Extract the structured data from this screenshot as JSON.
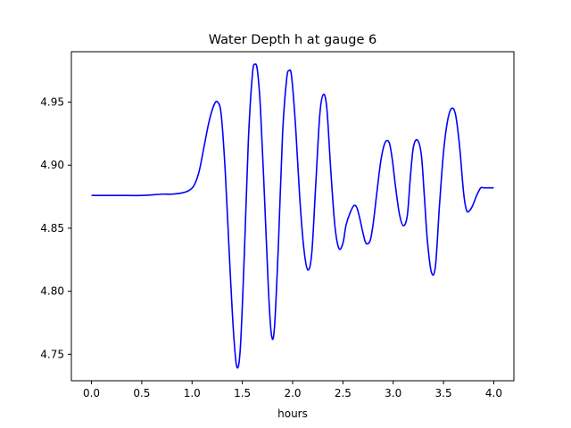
{
  "chart_data": {
    "type": "line",
    "title": "Water Depth h at gauge 6",
    "xlabel": "hours",
    "ylabel": "",
    "xlim": [
      -0.2,
      4.2
    ],
    "ylim": [
      4.729,
      4.99
    ],
    "xticks": [
      0.0,
      0.5,
      1.0,
      1.5,
      2.0,
      2.5,
      3.0,
      3.5,
      4.0
    ],
    "xtick_labels": [
      "0.0",
      "0.5",
      "1.0",
      "1.5",
      "2.0",
      "2.5",
      "3.0",
      "3.5",
      "4.0"
    ],
    "yticks": [
      4.75,
      4.8,
      4.85,
      4.9,
      4.95
    ],
    "ytick_labels": [
      "4.75",
      "4.80",
      "4.85",
      "4.90",
      "4.95"
    ],
    "grid": false,
    "series": [
      {
        "color": "#0000ff",
        "x": [
          0.0,
          0.25,
          0.5,
          0.7,
          0.8,
          0.9,
          0.97,
          1.02,
          1.07,
          1.12,
          1.17,
          1.22,
          1.255,
          1.29,
          1.33,
          1.37,
          1.41,
          1.445,
          1.48,
          1.52,
          1.56,
          1.6,
          1.625,
          1.65,
          1.68,
          1.72,
          1.76,
          1.79,
          1.82,
          1.86,
          1.9,
          1.94,
          1.965,
          1.99,
          2.03,
          2.07,
          2.11,
          2.15,
          2.19,
          2.23,
          2.27,
          2.305,
          2.34,
          2.38,
          2.42,
          2.46,
          2.5,
          2.53,
          2.57,
          2.61,
          2.64,
          2.67,
          2.7,
          2.73,
          2.77,
          2.8,
          2.84,
          2.88,
          2.92,
          2.96,
          2.99,
          3.02,
          3.06,
          3.1,
          3.14,
          3.17,
          3.2,
          3.24,
          3.28,
          3.31,
          3.34,
          3.38,
          3.42,
          3.46,
          3.5,
          3.54,
          3.58,
          3.62,
          3.66,
          3.7,
          3.73,
          3.76,
          3.79,
          3.83,
          3.87,
          3.9,
          3.94,
          3.97,
          4.0
        ],
        "y": [
          4.876,
          4.876,
          4.876,
          4.877,
          4.877,
          4.878,
          4.88,
          4.884,
          4.895,
          4.915,
          4.935,
          4.948,
          4.95,
          4.94,
          4.895,
          4.83,
          4.77,
          4.74,
          4.755,
          4.83,
          4.92,
          4.972,
          4.98,
          4.975,
          4.945,
          4.875,
          4.8,
          4.765,
          4.772,
          4.84,
          4.925,
          4.968,
          4.975,
          4.97,
          4.93,
          4.875,
          4.835,
          4.817,
          4.83,
          4.885,
          4.94,
          4.956,
          4.945,
          4.895,
          4.852,
          4.834,
          4.838,
          4.852,
          4.862,
          4.868,
          4.866,
          4.857,
          4.846,
          4.838,
          4.84,
          4.853,
          4.88,
          4.905,
          4.918,
          4.918,
          4.905,
          4.885,
          4.862,
          4.852,
          4.86,
          4.89,
          4.914,
          4.92,
          4.908,
          4.875,
          4.84,
          4.815,
          4.82,
          4.868,
          4.91,
          4.935,
          4.945,
          4.94,
          4.915,
          4.878,
          4.864,
          4.864,
          4.868,
          4.876,
          4.882,
          4.882,
          4.882,
          4.882,
          4.882
        ]
      }
    ]
  }
}
